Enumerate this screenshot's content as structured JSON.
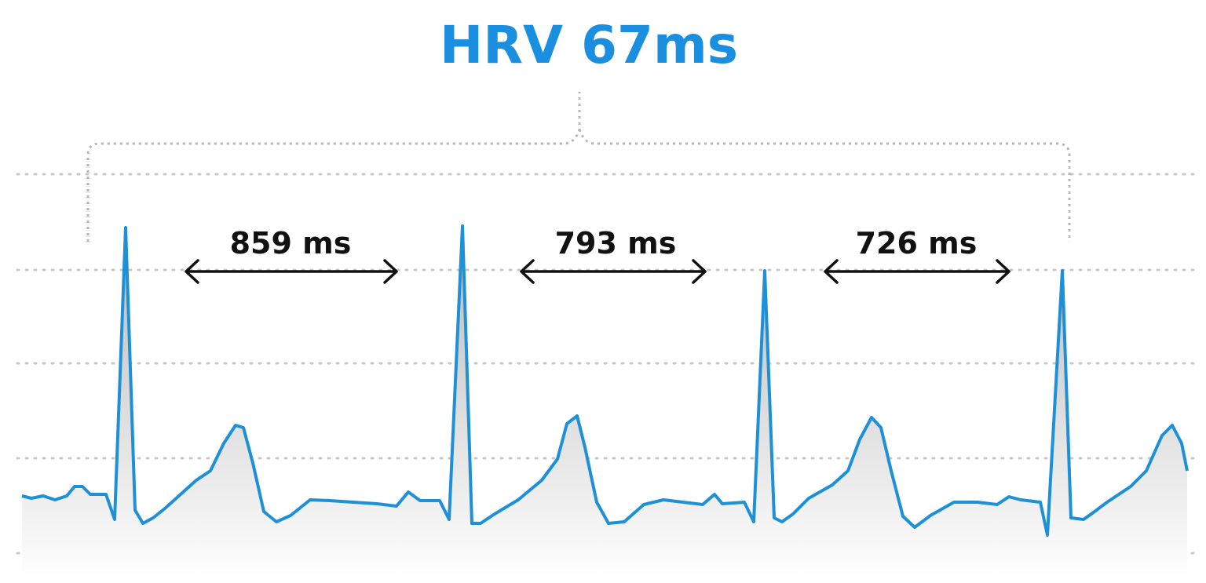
{
  "title": "HRV 67ms",
  "intervals": [
    {
      "label": "859 ms"
    },
    {
      "label": "793 ms"
    },
    {
      "label": "726 ms"
    }
  ]
}
